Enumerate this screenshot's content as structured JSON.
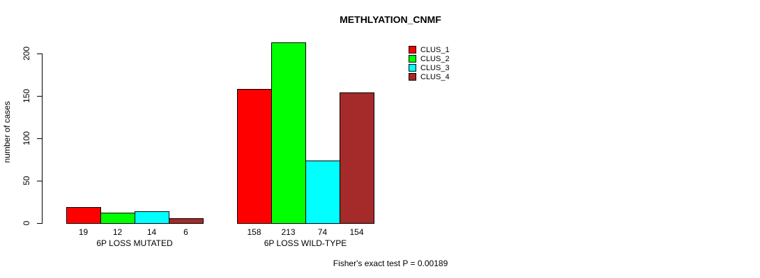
{
  "chart_data": {
    "type": "bar",
    "title": "METHLYATION_CNMF",
    "ylabel": "number of cases",
    "xlabel": "",
    "categories": [
      "6P LOSS MUTATED",
      "6P LOSS WILD-TYPE"
    ],
    "series": [
      {
        "name": "CLUS_1",
        "color": "#ff0000",
        "values": [
          19,
          158
        ]
      },
      {
        "name": "CLUS_2",
        "color": "#00ff00",
        "values": [
          12,
          213
        ]
      },
      {
        "name": "CLUS_3",
        "color": "#00ffff",
        "values": [
          14,
          74
        ]
      },
      {
        "name": "CLUS_4",
        "color": "#a52a2a",
        "values": [
          6,
          154
        ]
      }
    ],
    "bar_value_labels": [
      [
        "19",
        "12",
        "14",
        "6"
      ],
      [
        "158",
        "213",
        "74",
        "154"
      ]
    ],
    "yticks": [
      0,
      50,
      100,
      150,
      200
    ],
    "ylim": [
      0,
      213
    ],
    "grid": false,
    "legend_position": "top-right",
    "annotation": "Fisher's exact test P = 0.00189"
  },
  "colors": {
    "axis": "#000000",
    "background": "#ffffff",
    "text": "#000000"
  }
}
